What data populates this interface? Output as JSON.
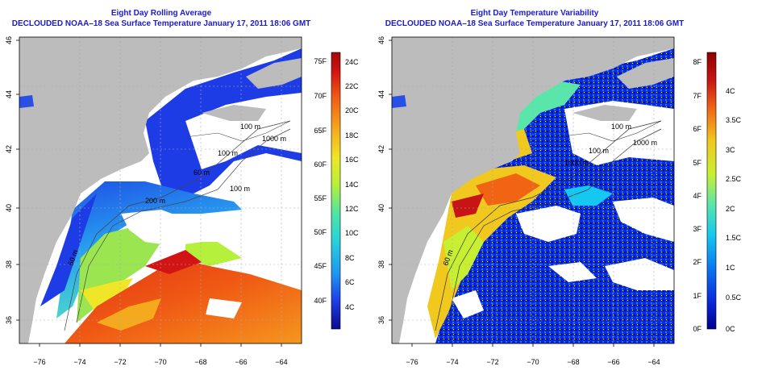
{
  "panels": [
    {
      "title_line1": "Eight Day Rolling Average",
      "title_line2": "DECLOUDED NOAA–18 Sea Surface Temperature January 17, 2011 18:06 GMT",
      "x_ticks": [
        "−76",
        "−74",
        "−72",
        "−70",
        "−68",
        "−66",
        "−64"
      ],
      "y_ticks": [
        "36",
        "38",
        "40",
        "42",
        "44",
        "46"
      ],
      "contour_labels": [
        "100 m",
        "1000 m",
        "100 m",
        "60 m",
        "100 m",
        "200 m",
        "50 m"
      ],
      "colorbar": {
        "left_labels": [
          "75F",
          "70F",
          "65F",
          "60F",
          "55F",
          "50F",
          "45F",
          "40F"
        ],
        "right_labels": [
          "24C",
          "22C",
          "20C",
          "18C",
          "16C",
          "14C",
          "12C",
          "10C",
          "8C",
          "6C",
          "4C"
        ],
        "colors": [
          "#0a0a8c",
          "#1e3ce6",
          "#1e96f0",
          "#28d2dc",
          "#50e6a0",
          "#b4f03c",
          "#f0e628",
          "#f5aa1e",
          "#f05a14",
          "#d21414",
          "#a00a0a"
        ]
      }
    },
    {
      "title_line1": "Eight Day Temperature Variability",
      "title_line2": "DECLOUDED NOAA–18 Sea Surface Temperature January 17, 2011 18:06 GMT",
      "x_ticks": [
        "−76",
        "−74",
        "−72",
        "−70",
        "−68",
        "−66",
        "−64"
      ],
      "y_ticks": [
        "36",
        "38",
        "40",
        "42",
        "44",
        "46"
      ],
      "contour_labels": [
        "100 m",
        "1000 m",
        "100 m",
        "1000 m",
        "60 m"
      ],
      "colorbar": {
        "left_labels": [
          "8F",
          "7F",
          "6F",
          "5F",
          "4F",
          "3F",
          "2F",
          "1F",
          "0F"
        ],
        "right_labels": [
          "4C",
          "3.5C",
          "3C",
          "2.5C",
          "2C",
          "1.5C",
          "1C",
          "0.5C",
          "0C"
        ],
        "colors": [
          "#00008c",
          "#0a28dc",
          "#0a78f0",
          "#14c8f0",
          "#5ae6aa",
          "#c8f032",
          "#f0c81e",
          "#f06414",
          "#c81414",
          "#8c0000"
        ]
      }
    }
  ]
}
